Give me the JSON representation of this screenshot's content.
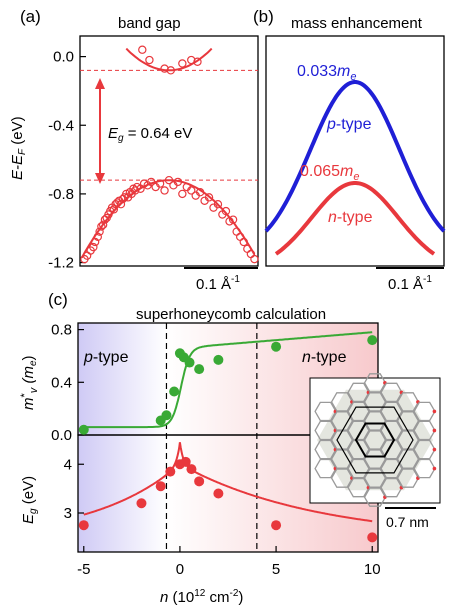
{
  "colors": {
    "red": "#e8383d",
    "blue": "#1f1fd6",
    "green": "#39a935",
    "black": "#000000",
    "purple_bg": "#cfcaf5",
    "pink_bg": "#f7c9cc"
  },
  "panel_a": {
    "label": "(a)",
    "title": "band gap",
    "eg_label": "E",
    "eg_sub": "g",
    "eg_value": " = 0.64 eV",
    "scale_label": "0.1 Å",
    "scale_sup": "-1"
  },
  "panel_b": {
    "label": "(b)",
    "title": "mass enhancement",
    "scale_label": "0.1 Å",
    "scale_sup": "-1",
    "blue_mass": "0.033",
    "red_mass": "0.065",
    "mass_unit_m": "m",
    "mass_unit_sub": "e",
    "ptype_italic": "p",
    "ntype_italic": "n",
    "type_suffix": "-type"
  },
  "panel_c": {
    "label": "(c)",
    "title": "superhoneycomb calculation",
    "ptype_italic": "p",
    "ntype_italic": "n",
    "type_suffix": "-type",
    "inset_scale": "0.7 nm"
  },
  "axis_labels": {
    "a_y_main": "E",
    "a_y_sub1": "-E",
    "a_y_sub2": "F",
    "a_y_unit": " (eV)",
    "c_top_y_m": "m",
    "c_top_y_star": "*",
    "c_top_y_v": "v",
    "c_top_y_unit_m": " (m",
    "c_top_y_unit_e": "e",
    "c_top_y_close": ")",
    "c_bot_y_E": "E",
    "c_bot_y_g": "g",
    "c_bot_y_unit": " (eV)",
    "c_x_n": "n",
    "c_x_unit": " (10",
    "c_x_exp": "12",
    "c_x_cm": " cm",
    "c_x_cmexp": "-2",
    "c_x_close": ")"
  },
  "chart_data": [
    {
      "type": "scatter",
      "panel": "a",
      "title": "band gap",
      "ylabel": "E-E_F (eV)",
      "ylim": [
        -1.22,
        0.12
      ],
      "yticks": [
        "0.0",
        "-0.4",
        "-0.8",
        "-1.2"
      ],
      "ytick_values": [
        0.0,
        -0.4,
        -0.8,
        -1.2
      ],
      "eg_eV": 0.64,
      "conduction_band_min": -0.08,
      "valence_band_max": -0.72,
      "x_range_rel": [
        -1,
        1
      ],
      "conduction_points": [
        [
          -0.3,
          0.04
        ],
        [
          -0.22,
          -0.02
        ],
        [
          -0.05,
          -0.07
        ],
        [
          0.02,
          -0.08
        ],
        [
          0.15,
          -0.04
        ],
        [
          0.25,
          -0.02
        ],
        [
          0.32,
          -0.03
        ]
      ],
      "valence_points": [
        [
          -0.95,
          -1.18
        ],
        [
          -0.92,
          -1.16
        ],
        [
          -0.88,
          -1.13
        ],
        [
          -0.85,
          -1.11
        ],
        [
          -0.83,
          -1.08
        ],
        [
          -0.8,
          -1.05
        ],
        [
          -0.78,
          -1.02
        ],
        [
          -0.76,
          -0.99
        ],
        [
          -0.74,
          -0.98
        ],
        [
          -0.72,
          -0.95
        ],
        [
          -0.7,
          -0.94
        ],
        [
          -0.68,
          -0.92
        ],
        [
          -0.66,
          -0.9
        ],
        [
          -0.64,
          -0.88
        ],
        [
          -0.62,
          -0.89
        ],
        [
          -0.6,
          -0.86
        ],
        [
          -0.58,
          -0.85
        ],
        [
          -0.56,
          -0.84
        ],
        [
          -0.54,
          -0.86
        ],
        [
          -0.52,
          -0.83
        ],
        [
          -0.5,
          -0.82
        ],
        [
          -0.48,
          -0.8
        ],
        [
          -0.46,
          -0.82
        ],
        [
          -0.44,
          -0.79
        ],
        [
          -0.42,
          -0.8
        ],
        [
          -0.4,
          -0.77
        ],
        [
          -0.38,
          -0.78
        ],
        [
          -0.36,
          -0.76
        ],
        [
          -0.32,
          -0.77
        ],
        [
          -0.28,
          -0.74
        ],
        [
          -0.24,
          -0.75
        ],
        [
          -0.2,
          -0.73
        ],
        [
          -0.15,
          -0.76
        ],
        [
          -0.1,
          -0.74
        ],
        [
          -0.05,
          -0.78
        ],
        [
          0.0,
          -0.72
        ],
        [
          0.05,
          -0.75
        ],
        [
          0.1,
          -0.73
        ],
        [
          0.15,
          -0.8
        ],
        [
          0.2,
          -0.76
        ],
        [
          0.25,
          -0.78
        ],
        [
          0.3,
          -0.81
        ],
        [
          0.35,
          -0.79
        ],
        [
          0.4,
          -0.84
        ],
        [
          0.45,
          -0.82
        ],
        [
          0.5,
          -0.88
        ],
        [
          0.55,
          -0.86
        ],
        [
          0.6,
          -0.92
        ],
        [
          0.64,
          -0.9
        ],
        [
          0.68,
          -0.96
        ],
        [
          0.72,
          -0.95
        ],
        [
          0.76,
          -1.02
        ],
        [
          0.8,
          -1.05
        ],
        [
          0.84,
          -1.08
        ],
        [
          0.88,
          -1.12
        ],
        [
          0.92,
          -1.15
        ],
        [
          0.96,
          -1.18
        ]
      ]
    },
    {
      "type": "line",
      "panel": "b",
      "title": "mass enhancement",
      "series": [
        {
          "name": "0.033m_e p-type",
          "color": "blue",
          "peak": 1.0,
          "width": 1.0
        },
        {
          "name": "0.065m_e n-type",
          "color": "red",
          "peak": 0.0,
          "width": 1.0
        }
      ]
    },
    {
      "type": "scatter",
      "panel": "c-top",
      "ylabel": "m*_v (m_e)",
      "ylim": [
        0.0,
        0.85
      ],
      "yticks": [
        "0.0",
        "0.4",
        "0.8"
      ],
      "ytick_values": [
        0.0,
        0.4,
        0.8
      ],
      "x": [
        -5,
        -1,
        -0.7,
        -0.3,
        0.0,
        0.2,
        0.5,
        1.0,
        2.0,
        5.0,
        10.0
      ],
      "y": [
        0.04,
        0.11,
        0.15,
        0.33,
        0.62,
        0.59,
        0.55,
        0.5,
        0.57,
        0.67,
        0.72
      ],
      "fit_color": "green"
    },
    {
      "type": "scatter",
      "panel": "c-bottom",
      "ylabel": "E_g (eV)",
      "ylim": [
        2.2,
        4.6
      ],
      "yticks": [
        "3",
        "4"
      ],
      "ytick_values": [
        3,
        4
      ],
      "x": [
        -5,
        -2,
        -1,
        -0.5,
        0.0,
        0.3,
        0.6,
        1.0,
        2.0,
        5.0,
        10.0
      ],
      "y": [
        2.75,
        3.2,
        3.55,
        3.85,
        4.0,
        4.05,
        3.9,
        3.65,
        3.4,
        2.75,
        2.5
      ],
      "fit_color": "red",
      "xlabel": "n (10^12 cm^-2)",
      "xlim": [
        -5.3,
        10.3
      ],
      "xticks": [
        "-5",
        "0",
        "5",
        "10"
      ],
      "xtick_values": [
        -5,
        0,
        5,
        10
      ],
      "dashed_lines_x": [
        -0.7,
        4.0
      ]
    }
  ]
}
